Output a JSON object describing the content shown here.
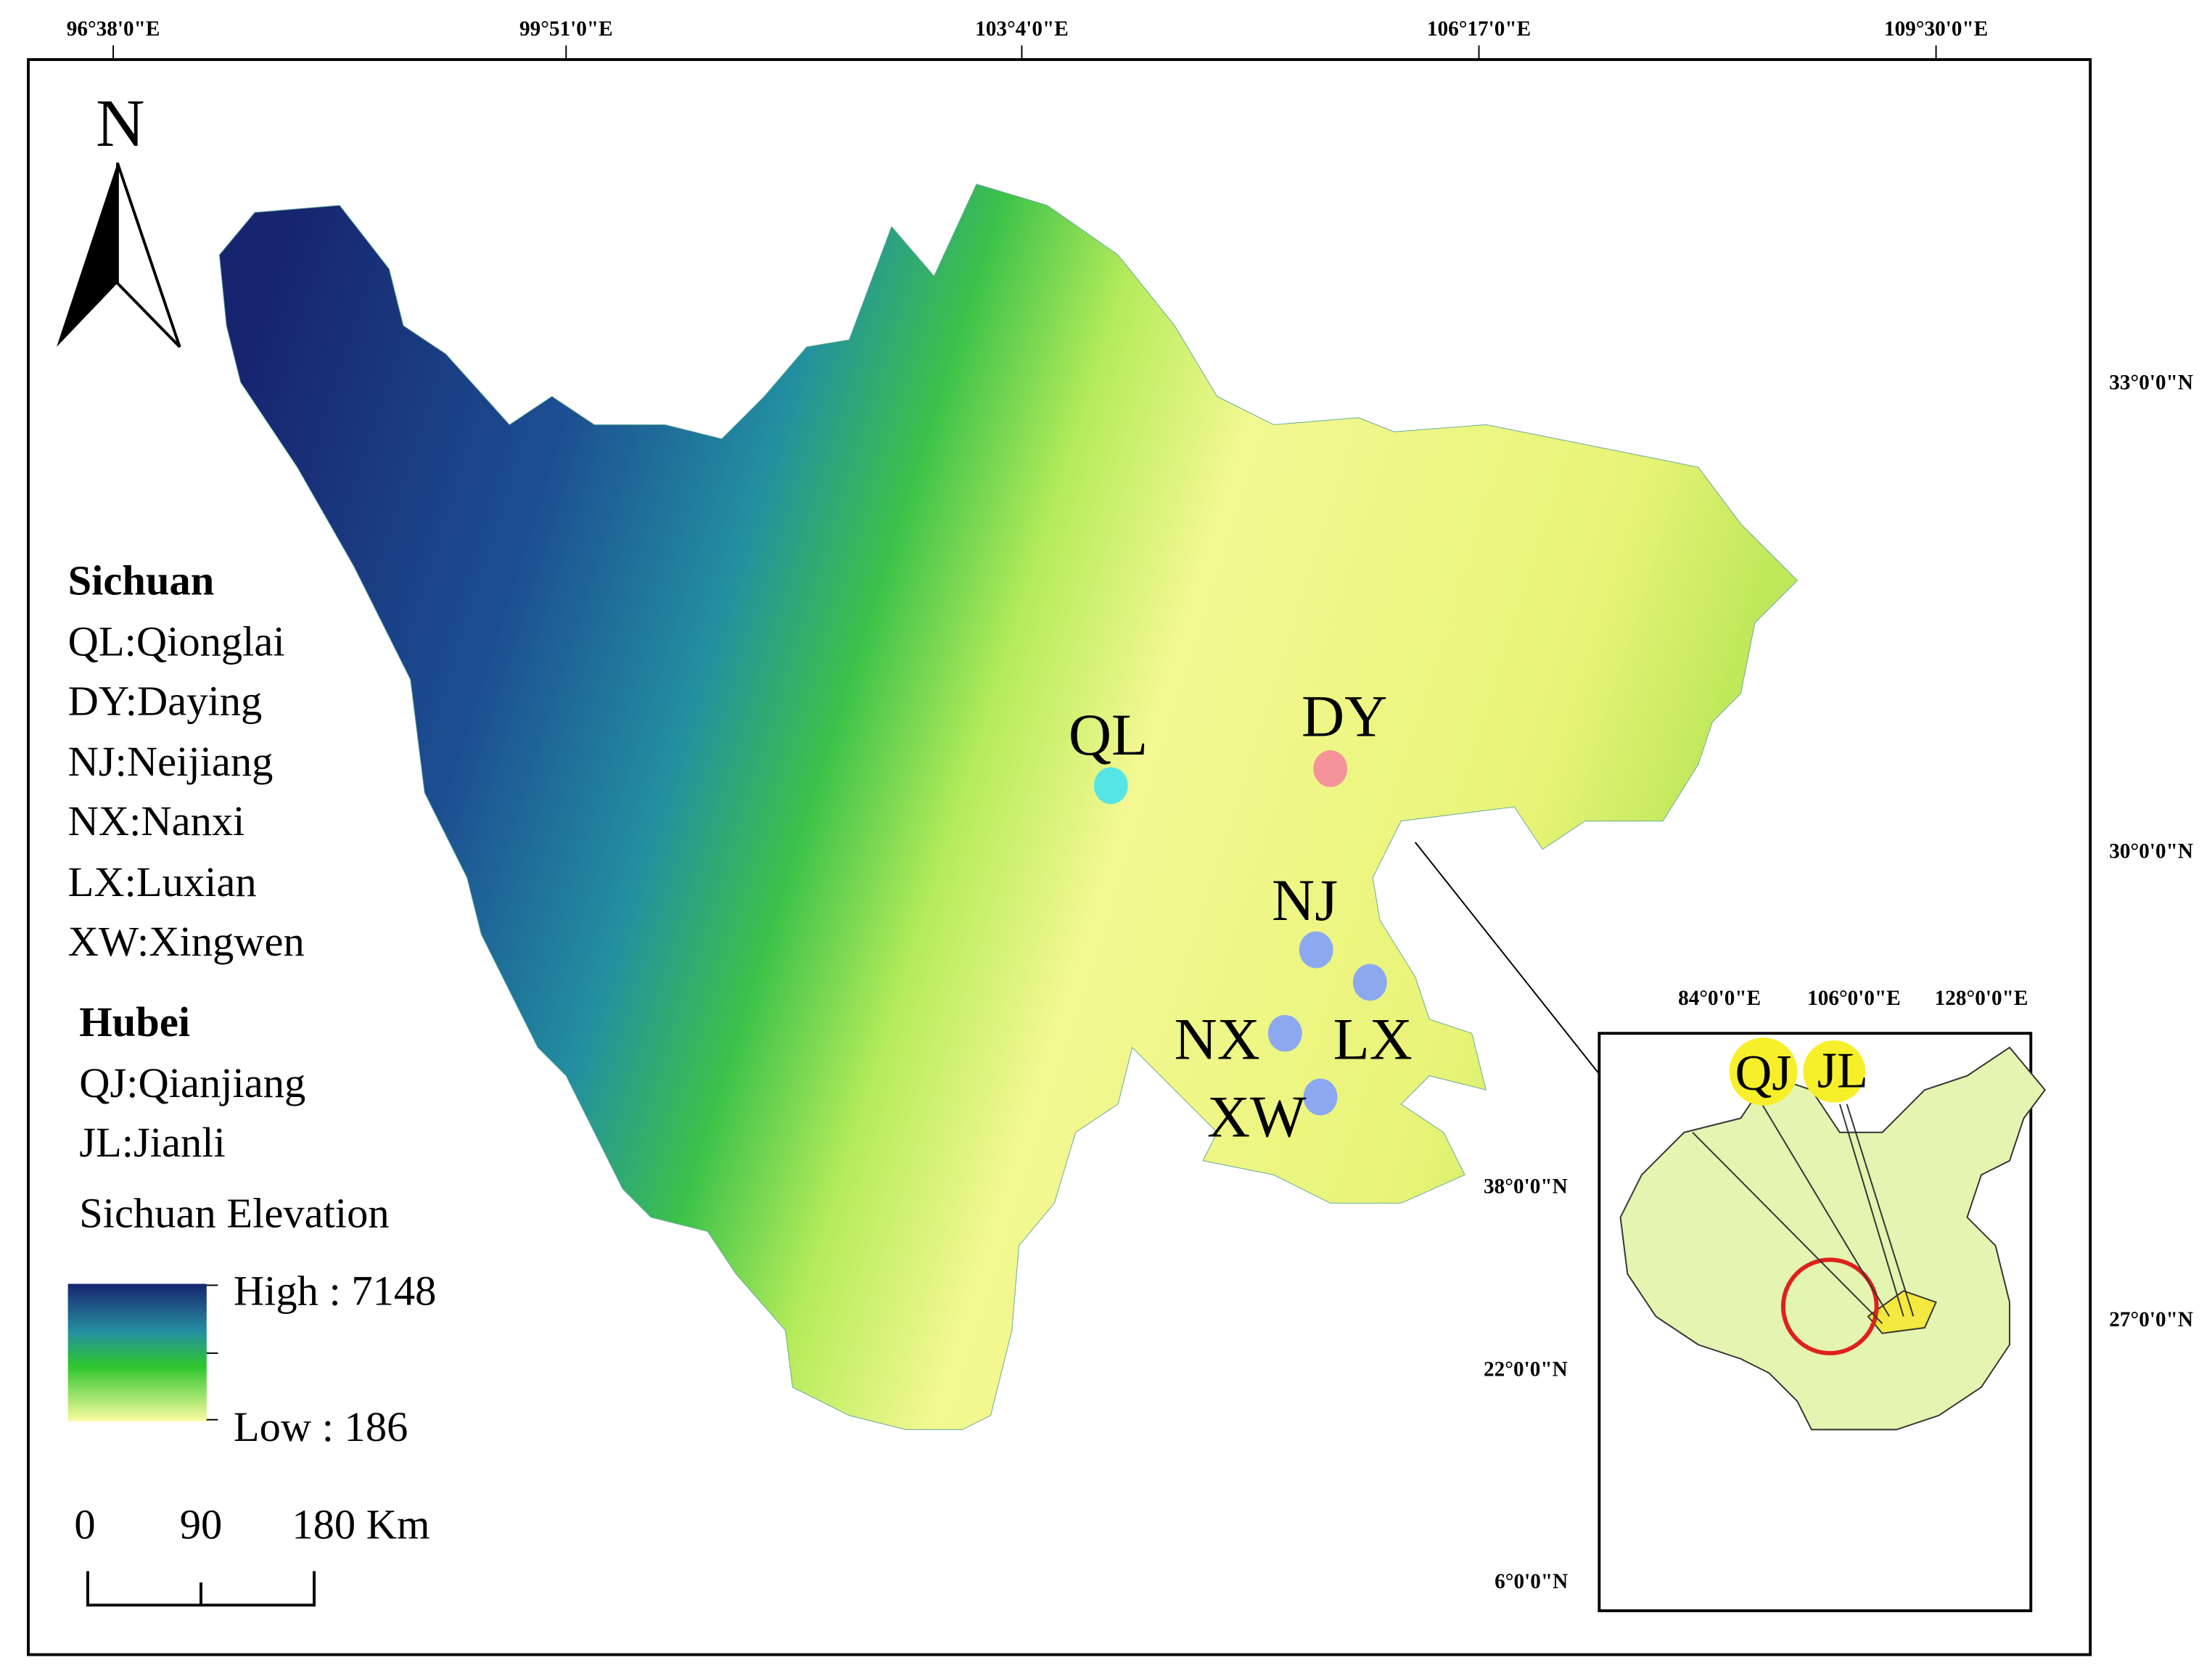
{
  "frame": {
    "top_labels": [
      "96°38'0\"E",
      "99°51'0\"E",
      "103°4'0\"E",
      "106°17'0\"E",
      "109°30'0\"E"
    ],
    "right_labels": [
      "33°0'0\"N",
      "30°0'0\"N",
      "27°0'0\"N"
    ]
  },
  "north": "N",
  "legend": {
    "groups": [
      {
        "title": "Sichuan",
        "items": [
          "QL:Qionglai",
          "DY:Daying",
          "NJ:Neijiang",
          "NX:Nanxi",
          "LX:Luxian",
          "XW:Xingwen"
        ]
      },
      {
        "title": "Hubei",
        "items": [
          "QJ:Qianjiang",
          "JL:Jianli"
        ]
      }
    ],
    "elevation_title": "Sichuan Elevation",
    "high": "High : 7148",
    "low": "Low : 186"
  },
  "scale_bar": [
    "0",
    "90",
    "180 Km"
  ],
  "sites": [
    {
      "label": "QL",
      "color": "#55e5e6"
    },
    {
      "label": "DY",
      "color": "#f4939a"
    },
    {
      "label": "NJ",
      "color": "#8ca8f0"
    },
    {
      "label": "NX",
      "color": "#8ca8f0"
    },
    {
      "label": "LX",
      "color": "#8ca8f0"
    },
    {
      "label": "XW",
      "color": "#8ca8f0"
    }
  ],
  "inset": {
    "top_labels": [
      "84°0'0\"E",
      "106°0'0\"E",
      "128°0'0\"E"
    ],
    "left_labels": [
      "38°0'0\"N",
      "22°0'0\"N",
      "6°0'0\"N"
    ],
    "markers": [
      "QJ",
      "JL"
    ]
  }
}
